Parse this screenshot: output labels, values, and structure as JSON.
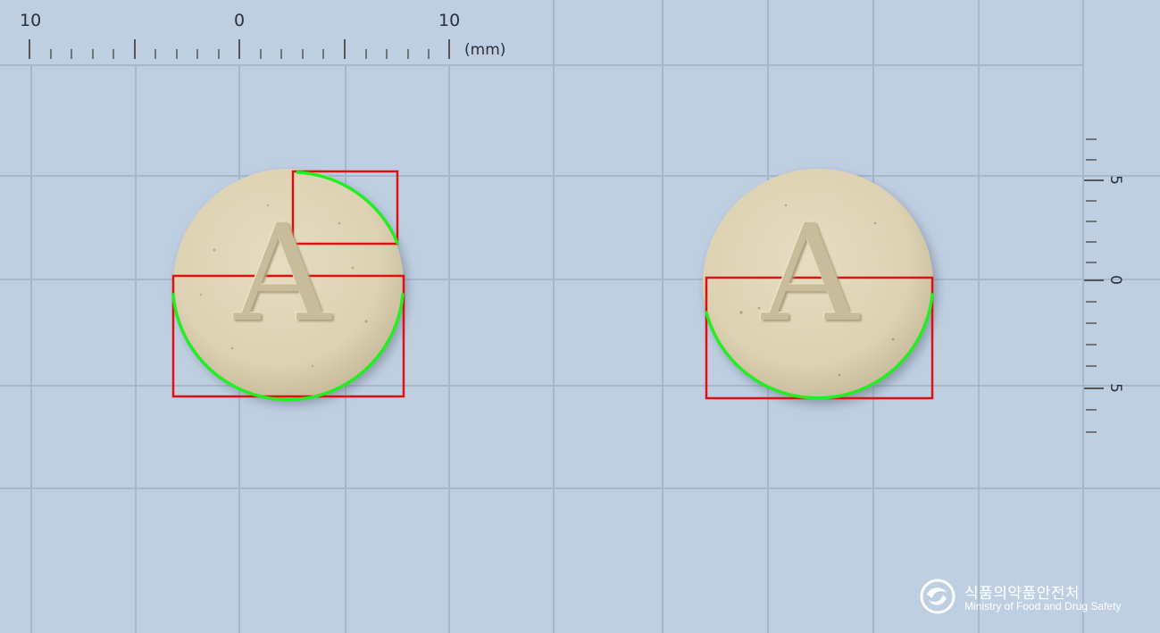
{
  "ruler_top": {
    "labels": [
      "10",
      "0",
      "10"
    ],
    "unit": "(mm)"
  },
  "ruler_right": {
    "labels": [
      "5",
      "0",
      "5"
    ]
  },
  "logo": {
    "korean": "식품의약품안전처",
    "english": "Ministry of Food and Drug Safety"
  },
  "tablets": [
    {
      "imprint": "A"
    },
    {
      "imprint": "A"
    }
  ]
}
